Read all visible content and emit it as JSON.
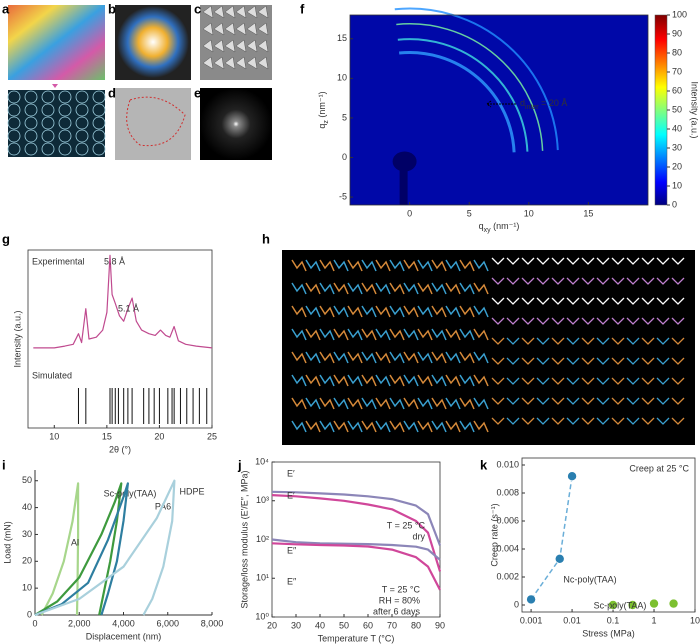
{
  "panel_labels": [
    "a",
    "b",
    "c",
    "d",
    "e",
    "f",
    "g",
    "h",
    "i",
    "j",
    "k"
  ],
  "chart_data": [
    {
      "type": "heatmap",
      "xlabel": [
        "q",
        "xy",
        " (nm⁻¹)"
      ],
      "ylabel": [
        "q",
        "z",
        " (nm⁻¹)"
      ],
      "xlim": [
        -5,
        20
      ],
      "xticks": [
        0,
        5,
        10,
        15
      ],
      "ylim": [
        -6,
        18
      ],
      "yticks": [
        -5,
        0,
        5,
        10,
        15
      ],
      "clim": [
        0,
        100
      ],
      "cticks": [
        0,
        10,
        20,
        30,
        40,
        50,
        60,
        70,
        80,
        90,
        100
      ],
      "clabel": "Intensity (a.u.)",
      "annotation": [
        "d",
        "inter",
        " = 20 Å"
      ]
    },
    {
      "type": "line",
      "xlabel": "2θ (°)",
      "ylabel": "Intensity (a.u.)",
      "xlim": [
        7.5,
        25
      ],
      "xticks": [
        10,
        15,
        20,
        25
      ],
      "ylim": [
        0,
        100
      ],
      "series": [
        {
          "name": "Experimental",
          "color": "#c04a8f",
          "x": [
            8,
            9,
            10,
            11,
            11.8,
            12.3,
            12.6,
            13.0,
            13.3,
            14,
            14.6,
            15.0,
            15.3,
            15.5,
            15.8,
            16.2,
            16.6,
            17.0,
            17.4,
            17.8,
            18.3,
            19,
            19.6,
            20.1,
            20.6,
            21.0,
            21.4,
            21.8,
            22.5,
            23.5,
            25
          ],
          "values": [
            45,
            45,
            45,
            46,
            47,
            53,
            48,
            67,
            50,
            51,
            55,
            65,
            97,
            75,
            70,
            63,
            60,
            67,
            73,
            60,
            55,
            53,
            52,
            55,
            52,
            51,
            57,
            49,
            47,
            46,
            45
          ]
        }
      ],
      "sticks": {
        "name": "Simulated",
        "color": "#111",
        "x": [
          12.3,
          13.0,
          15.3,
          15.5,
          15.8,
          16.1,
          16.6,
          17.0,
          17.4,
          18.5,
          19.0,
          19.5,
          20.0,
          20.8,
          21.2,
          21.4,
          22.0,
          22.6,
          23.2,
          23.8,
          24.5
        ]
      },
      "annotations": [
        "5.8 Å",
        "5.1 Å"
      ]
    },
    {
      "type": "line",
      "xlabel": "Displacement (nm)",
      "ylabel": "Load (mN)",
      "xlim": [
        0,
        8000
      ],
      "xticks": [
        0,
        {
          "value": 2000,
          "label": "2,000"
        },
        {
          "value": 4000,
          "label": "4,000"
        },
        {
          "value": 6000,
          "label": "6,000"
        },
        {
          "value": 8000,
          "label": "8,000"
        }
      ],
      "ylim": [
        0,
        54
      ],
      "yticks": [
        0,
        10,
        20,
        30,
        40,
        50
      ],
      "series": [
        {
          "name": "Al",
          "color": "#a7d68b",
          "x": [
            300,
            800,
            1300,
            1700,
            1950,
            1950,
            1920,
            1900
          ],
          "values": [
            0,
            8,
            20,
            35,
            49,
            30,
            10,
            0
          ]
        },
        {
          "name": "Sc-poly(TAA)",
          "color": "#3e9a3e",
          "x": [
            0,
            1000,
            2000,
            3000,
            3600,
            3900,
            3700,
            3400,
            3100,
            2900
          ],
          "values": [
            0,
            5,
            14,
            30,
            42,
            49,
            35,
            20,
            8,
            0
          ]
        },
        {
          "name": "PA6",
          "color": "#2e7ea0",
          "x": [
            0,
            1200,
            2400,
            3300,
            4000,
            4200,
            4000,
            3700,
            3300,
            3000
          ],
          "values": [
            0,
            4,
            12,
            28,
            44,
            49,
            35,
            20,
            8,
            0
          ]
        },
        {
          "name": "HDPE",
          "color": "#a9d0dc",
          "x": [
            0,
            2000,
            4000,
            5500,
            6300,
            6200,
            5800,
            5300,
            4900
          ],
          "values": [
            0,
            6,
            18,
            36,
            50,
            35,
            18,
            6,
            0
          ]
        }
      ]
    },
    {
      "type": "line",
      "xlabel": "Temperature T (°C)",
      "ylabel": "Storage/loss modulus (E′/E″, MPa)",
      "ylog": true,
      "xlim": [
        20,
        90
      ],
      "xticks": [
        20,
        30,
        40,
        50,
        60,
        70,
        80,
        90
      ],
      "ylim": [
        1,
        10000
      ],
      "yticks": [
        {
          "value": 1,
          "label": "10⁰"
        },
        {
          "value": 10,
          "label": "10¹"
        },
        {
          "value": 100,
          "label": "10²"
        },
        {
          "value": 1000,
          "label": "10³"
        },
        {
          "value": 10000,
          "label": "10⁴"
        }
      ],
      "series": [
        {
          "name": "E′",
          "color": "#8c86b8",
          "x": [
            20,
            30,
            40,
            50,
            60,
            70,
            80,
            85,
            90
          ],
          "values": [
            1700,
            1650,
            1550,
            1450,
            1300,
            1100,
            750,
            450,
            70
          ]
        },
        {
          "name": "E′",
          "color": "#d0479a",
          "x": [
            20,
            30,
            40,
            50,
            60,
            70,
            80,
            85,
            90
          ],
          "values": [
            1400,
            1300,
            1150,
            1000,
            800,
            600,
            300,
            150,
            15
          ]
        },
        {
          "name": "E″",
          "color": "#8c86b8",
          "x": [
            20,
            30,
            40,
            50,
            60,
            70,
            80,
            85,
            90
          ],
          "values": [
            100,
            85,
            80,
            78,
            76,
            72,
            65,
            55,
            30
          ]
        },
        {
          "name": "E″",
          "color": "#d0479a",
          "x": [
            20,
            30,
            40,
            50,
            60,
            70,
            80,
            85,
            90
          ],
          "values": [
            80,
            75,
            72,
            70,
            66,
            55,
            35,
            20,
            5
          ]
        }
      ],
      "annotations": [
        {
          "text": [
            "T = 25 °C",
            "dry"
          ],
          "color": "#8c86b8"
        },
        {
          "text": [
            "T = 25 °C",
            "RH = 80%",
            "after 6 days"
          ],
          "color": "#d0479a"
        }
      ]
    },
    {
      "type": "scatter",
      "title": "Creep at 25 °C",
      "xlabel": "Stress (MPa)",
      "ylabel": "Creep rate (s⁻¹)",
      "xlog": true,
      "xlim": [
        0.0006,
        10
      ],
      "xticks": [
        0.001,
        0.01,
        0.1,
        1,
        10
      ],
      "ylim": [
        -0.0005,
        0.0105
      ],
      "yticks": [
        0,
        0.002,
        0.004,
        0.006,
        0.008,
        {
          "value": 0.01,
          "label": "0.010"
        }
      ],
      "series": [
        {
          "name": "Nc-poly(TAA)",
          "color": "#2a7fb0",
          "x": [
            0.001,
            0.005,
            0.01
          ],
          "values": [
            0.0004,
            0.0033,
            0.0092
          ]
        },
        {
          "name": "Sc-poly(TAA)",
          "color": "#7cc030",
          "x": [
            0.1,
            0.3,
            1,
            3
          ],
          "values": [
            0,
            0,
            0.0001,
            0.0001
          ]
        }
      ]
    }
  ]
}
